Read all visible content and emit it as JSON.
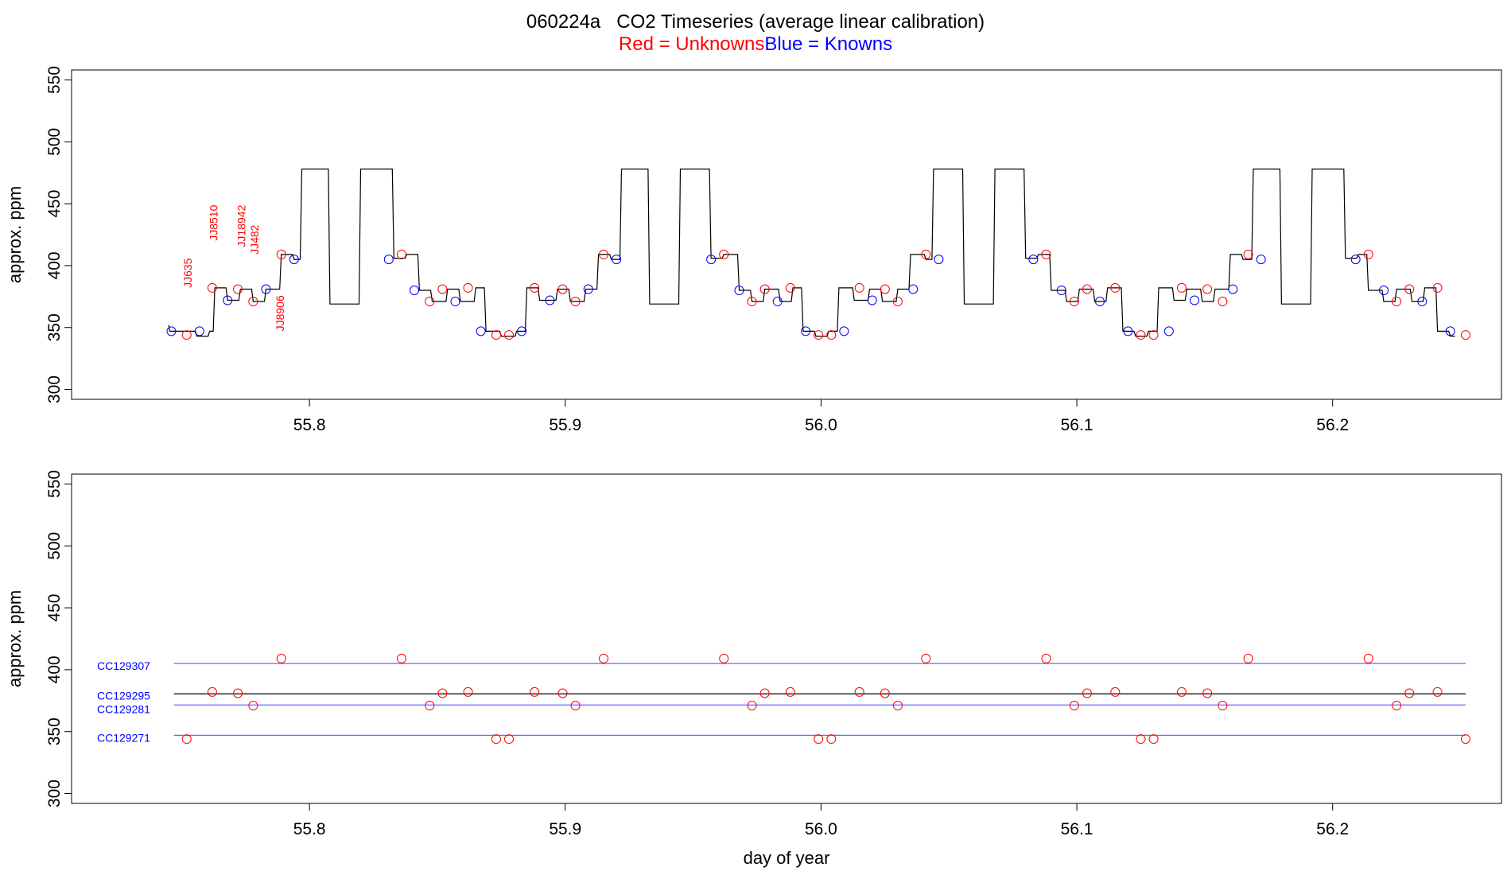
{
  "title": "060224a   CO2 Timeseries (average linear calibration)",
  "legend": {
    "red_label": "Red = Unknowns",
    "blue_label": "Blue = Knowns"
  },
  "colors": {
    "unknown": "#ff0000",
    "known": "#0000ff",
    "line": "#000000",
    "ref_line": "#6a6aff"
  },
  "chart_data": [
    {
      "type": "line",
      "panel": "top",
      "title": "060224a   CO2 Timeseries (average linear calibration)",
      "xlabel": "",
      "ylabel": "approx. ppm",
      "xlim": [
        55.707,
        56.266
      ],
      "ylim": [
        292,
        558
      ],
      "xticks": [
        55.8,
        55.9,
        56.0,
        56.1,
        56.2
      ],
      "xtick_labels": [
        "55.8",
        "55.9",
        "56.0",
        "56.1",
        "56.2"
      ],
      "yticks": [
        300,
        350,
        400,
        450,
        500,
        550
      ],
      "ytick_labels": [
        "300",
        "350",
        "400",
        "450",
        "500",
        "550"
      ],
      "grid": false,
      "legend_placement": "top-center (in subtitle)",
      "trace_segments": [
        [
          55.746,
          347
        ],
        [
          55.756,
          343
        ],
        [
          55.761,
          347
        ],
        [
          55.763,
          382
        ],
        [
          55.768,
          372
        ],
        [
          55.773,
          381
        ],
        [
          55.778,
          371
        ],
        [
          55.783,
          381
        ],
        [
          55.789,
          409
        ],
        [
          55.794,
          405
        ],
        [
          55.797,
          478
        ],
        [
          55.808,
          369
        ],
        [
          55.82,
          478
        ],
        [
          55.833,
          406
        ],
        [
          55.838,
          409
        ],
        [
          55.843,
          380
        ],
        [
          55.848,
          371
        ],
        [
          55.854,
          381
        ],
        [
          55.859,
          371
        ],
        [
          55.865,
          382
        ],
        [
          55.869,
          347
        ],
        [
          55.875,
          343
        ],
        [
          55.881,
          347
        ],
        [
          55.885,
          382
        ],
        [
          55.89,
          372
        ],
        [
          55.897,
          381
        ],
        [
          55.902,
          371
        ],
        [
          55.908,
          381
        ],
        [
          55.913,
          409
        ],
        [
          55.918,
          405
        ],
        [
          55.922,
          478
        ],
        [
          55.933,
          369
        ],
        [
          55.945,
          478
        ],
        [
          55.957,
          406
        ],
        [
          55.962,
          409
        ],
        [
          55.968,
          380
        ],
        [
          55.973,
          371
        ],
        [
          55.978,
          381
        ],
        [
          55.984,
          371
        ],
        [
          55.989,
          382
        ],
        [
          55.993,
          347
        ],
        [
          55.998,
          343
        ],
        [
          56.003,
          347
        ],
        [
          56.007,
          382
        ],
        [
          56.013,
          372
        ],
        [
          56.019,
          381
        ],
        [
          56.024,
          371
        ],
        [
          56.03,
          381
        ],
        [
          56.035,
          409
        ],
        [
          56.041,
          405
        ],
        [
          56.044,
          478
        ],
        [
          56.056,
          369
        ],
        [
          56.068,
          478
        ],
        [
          56.08,
          406
        ],
        [
          56.085,
          409
        ],
        [
          56.09,
          380
        ],
        [
          56.096,
          371
        ],
        [
          56.101,
          381
        ],
        [
          56.107,
          371
        ],
        [
          56.112,
          382
        ],
        [
          56.118,
          347
        ],
        [
          56.123,
          343
        ],
        [
          56.128,
          347
        ],
        [
          56.132,
          382
        ],
        [
          56.138,
          372
        ],
        [
          56.143,
          381
        ],
        [
          56.149,
          371
        ],
        [
          56.154,
          381
        ],
        [
          56.16,
          409
        ],
        [
          56.165,
          405
        ],
        [
          56.169,
          478
        ],
        [
          56.18,
          369
        ],
        [
          56.192,
          478
        ],
        [
          56.205,
          406
        ],
        [
          56.21,
          409
        ],
        [
          56.214,
          380
        ],
        [
          56.22,
          371
        ],
        [
          56.225,
          381
        ],
        [
          56.231,
          371
        ],
        [
          56.236,
          382
        ],
        [
          56.241,
          347
        ],
        [
          56.246,
          343
        ]
      ],
      "trace_start": [
        55.745,
        352
      ],
      "unknown_points": {
        "x": [
          55.752,
          55.762,
          55.772,
          55.778,
          55.789,
          55.836,
          55.847,
          55.852,
          55.862,
          55.873,
          55.878,
          55.888,
          55.899,
          55.904,
          55.915,
          55.962,
          55.973,
          55.978,
          55.988,
          55.999,
          56.004,
          56.015,
          56.025,
          56.03,
          56.041,
          56.088,
          56.099,
          56.104,
          56.115,
          56.125,
          56.13,
          56.141,
          56.151,
          56.157,
          56.167,
          56.214,
          56.225,
          56.23,
          56.241,
          56.252
        ],
        "y": [
          344,
          382,
          381,
          371,
          409,
          409,
          371,
          381,
          382,
          344,
          344,
          382,
          381,
          371,
          409,
          409,
          371,
          381,
          382,
          344,
          344,
          382,
          381,
          371,
          409,
          409,
          371,
          381,
          382,
          344,
          344,
          382,
          381,
          371,
          409,
          409,
          371,
          381,
          382,
          344
        ]
      },
      "known_points": {
        "x": [
          55.746,
          55.757,
          55.768,
          55.783,
          55.794,
          55.831,
          55.841,
          55.857,
          55.867,
          55.883,
          55.894,
          55.909,
          55.92,
          55.957,
          55.968,
          55.983,
          55.994,
          56.009,
          56.02,
          56.036,
          56.046,
          56.083,
          56.094,
          56.109,
          56.12,
          56.136,
          56.146,
          56.161,
          56.172,
          56.209,
          56.22,
          56.235,
          56.246
        ],
        "y": [
          347,
          347,
          372,
          381,
          405,
          405,
          380,
          371,
          347,
          347,
          372,
          381,
          405,
          405,
          380,
          371,
          347,
          347,
          372,
          381,
          405,
          405,
          380,
          371,
          347,
          347,
          372,
          381,
          405,
          405,
          380,
          371,
          347
        ]
      },
      "sample_labels": [
        {
          "text": "JJ635",
          "x": 55.754,
          "y": 382
        },
        {
          "text": "JJ8510",
          "x": 55.764,
          "y": 420
        },
        {
          "text": "JJ18942",
          "x": 55.775,
          "y": 415
        },
        {
          "text": "JJ482",
          "x": 55.78,
          "y": 409
        },
        {
          "text": "JJ8906",
          "x": 55.79,
          "y": 347
        }
      ]
    },
    {
      "type": "scatter",
      "panel": "bottom",
      "xlabel": "day of year",
      "ylabel": "approx. ppm",
      "xlim": [
        55.707,
        56.266
      ],
      "ylim": [
        292,
        558
      ],
      "xticks": [
        55.8,
        55.9,
        56.0,
        56.1,
        56.2
      ],
      "xtick_labels": [
        "55.8",
        "55.9",
        "56.0",
        "56.1",
        "56.2"
      ],
      "yticks": [
        300,
        350,
        400,
        450,
        500,
        550
      ],
      "ytick_labels": [
        "300",
        "350",
        "400",
        "450",
        "500",
        "550"
      ],
      "grid": false,
      "reference_lines": [
        {
          "name": "CC129307",
          "y": 405,
          "color": "#0000ff"
        },
        {
          "name": "CC129295",
          "y": 380.5,
          "color": "#000000"
        },
        {
          "name": "CC129281",
          "y": 371.5,
          "color": "#0000ff"
        },
        {
          "name": "CC129271",
          "y": 347,
          "color": "#0000ff"
        }
      ],
      "ref_x_range": [
        55.747,
        56.252
      ],
      "unknown_points": {
        "x": [
          55.752,
          55.762,
          55.772,
          55.778,
          55.789,
          55.836,
          55.847,
          55.852,
          55.862,
          55.873,
          55.878,
          55.888,
          55.899,
          55.904,
          55.915,
          55.962,
          55.973,
          55.978,
          55.988,
          55.999,
          56.004,
          56.015,
          56.025,
          56.03,
          56.041,
          56.088,
          56.099,
          56.104,
          56.115,
          56.125,
          56.13,
          56.141,
          56.151,
          56.157,
          56.167,
          56.214,
          56.225,
          56.23,
          56.241,
          56.252
        ],
        "y": [
          344,
          382,
          381,
          371,
          409,
          409,
          371,
          381,
          382,
          344,
          344,
          382,
          381,
          371,
          409,
          409,
          371,
          381,
          382,
          344,
          344,
          382,
          381,
          371,
          409,
          409,
          371,
          381,
          382,
          344,
          344,
          382,
          381,
          371,
          409,
          409,
          371,
          381,
          382,
          344
        ]
      }
    }
  ]
}
